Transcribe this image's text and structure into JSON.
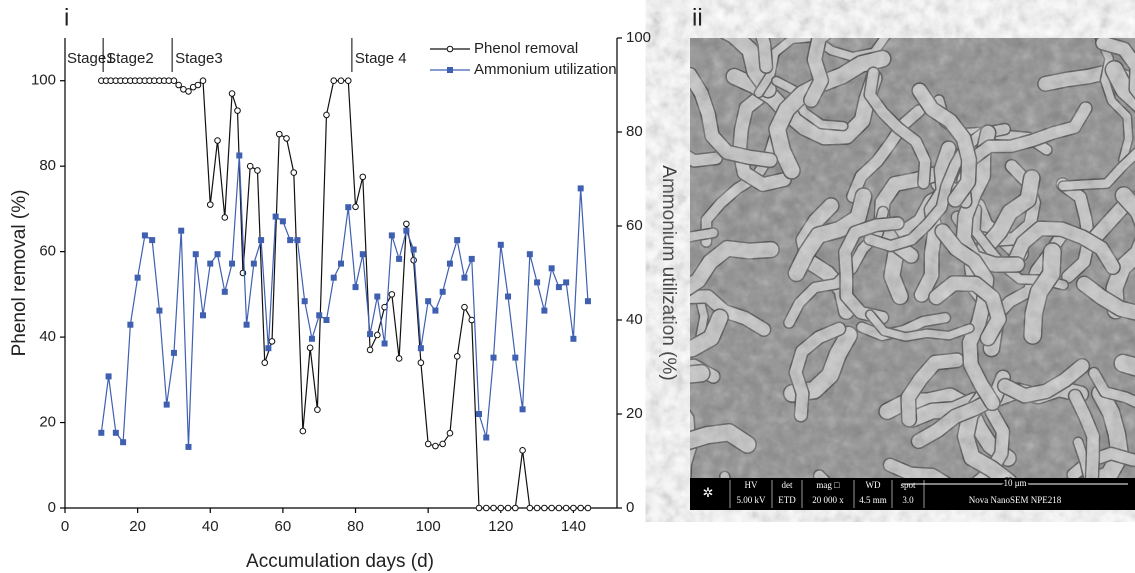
{
  "chart_data": {
    "type": "line",
    "panel_label": "i",
    "x_label": "Accumulation days (d)",
    "y_label": "Phenol removal (%)",
    "y2_label": "Ammonium utilization (%)",
    "xlim": [
      0,
      152
    ],
    "xticks": [
      0,
      20,
      40,
      60,
      80,
      100,
      120,
      140
    ],
    "ylim": [
      0,
      110
    ],
    "yticks": [
      0,
      20,
      40,
      60,
      80,
      100
    ],
    "y2lim": [
      0,
      100
    ],
    "y2ticks": [
      0,
      20,
      40,
      60,
      80,
      100
    ],
    "legend": "upper right",
    "annotations": [
      {
        "text": "Stage1",
        "x": 0
      },
      {
        "text": "Stage2",
        "x": 10.5
      },
      {
        "text": "Stage3",
        "x": 29.5
      },
      {
        "text": "Stage 4",
        "x": 79
      }
    ],
    "series": [
      {
        "name": "Phenol removal",
        "color": "#111111",
        "marker": "open-circle",
        "x": [
          10,
          11.3,
          12.6,
          14,
          15.3,
          16.6,
          18,
          19.3,
          20.6,
          22,
          23.3,
          24.6,
          26,
          27.3,
          28.6,
          30,
          31.3,
          32.6,
          34,
          35.3,
          36.6,
          38,
          40,
          42,
          44,
          46,
          47.5,
          49,
          51,
          53,
          55,
          57,
          59,
          61,
          63,
          65.5,
          67.5,
          69.5,
          72,
          74,
          76,
          78,
          80,
          82,
          84,
          86,
          88,
          90,
          92,
          94,
          96,
          98,
          100,
          102,
          104,
          106,
          108,
          110,
          112,
          114,
          116,
          118,
          120,
          122,
          124,
          126,
          128,
          130,
          132,
          134,
          136,
          138,
          140,
          142,
          144
        ],
        "values": [
          100,
          100,
          100,
          100,
          100,
          100,
          100,
          100,
          100,
          100,
          100,
          100,
          100,
          100,
          100,
          100,
          99,
          98,
          97.5,
          98.5,
          99,
          100,
          71,
          86,
          68,
          97,
          93,
          55,
          80,
          79,
          34,
          39,
          87.5,
          86.5,
          78.5,
          18,
          37.5,
          23,
          92,
          100,
          100,
          100,
          70.5,
          77.5,
          37,
          40.5,
          47,
          50,
          35,
          66.5,
          58,
          34,
          15,
          14.5,
          15,
          17.5,
          35.5,
          47,
          44,
          0,
          0,
          0,
          0,
          0,
          0,
          13.5,
          0,
          0,
          0,
          0,
          0,
          0,
          0,
          0,
          0
        ]
      },
      {
        "name": "Ammonium utilization",
        "color": "#3f5fb0",
        "marker": "square",
        "axis": "y2",
        "x": [
          10,
          12,
          14,
          16,
          18,
          20,
          22,
          24,
          26,
          28,
          30,
          32,
          34,
          36,
          38,
          40,
          42,
          44,
          46,
          48,
          50,
          52,
          54,
          56,
          58,
          60,
          62,
          64,
          66,
          68,
          70,
          72,
          74,
          76,
          78,
          80,
          82,
          84,
          86,
          88,
          90,
          92,
          94,
          96,
          98,
          100,
          102,
          104,
          106,
          108,
          110,
          112,
          114,
          116,
          118,
          120,
          122,
          124,
          126,
          128,
          130,
          132,
          134,
          136,
          138,
          140,
          142,
          144
        ],
        "values": [
          16,
          28,
          16,
          14,
          39,
          49,
          58,
          57,
          42,
          22,
          33,
          59,
          13,
          54,
          41,
          52,
          54,
          46,
          52,
          75,
          39,
          52,
          57,
          34,
          62,
          61,
          57,
          57,
          44,
          36,
          41,
          40,
          49,
          52,
          64,
          47,
          54,
          37,
          45,
          35,
          58,
          53,
          59,
          55,
          34,
          44,
          42,
          46,
          52,
          57,
          49,
          53,
          20,
          15,
          32,
          56,
          45,
          32,
          21,
          54,
          48,
          42,
          51,
          47,
          48,
          36,
          68,
          44
        ]
      }
    ]
  },
  "image": {
    "panel_label": "ii",
    "info": [
      {
        "head": "HV",
        "value": "5.00 kV"
      },
      {
        "head": "det",
        "value": "ETD"
      },
      {
        "head": "mag □",
        "value": "20 000 x"
      },
      {
        "head": "WD",
        "value": "4.5 mm"
      },
      {
        "head": "spot",
        "value": "3.0"
      }
    ],
    "scale_bar": "10 μm",
    "instrument": "Nova NanoSEM  NPE218"
  }
}
